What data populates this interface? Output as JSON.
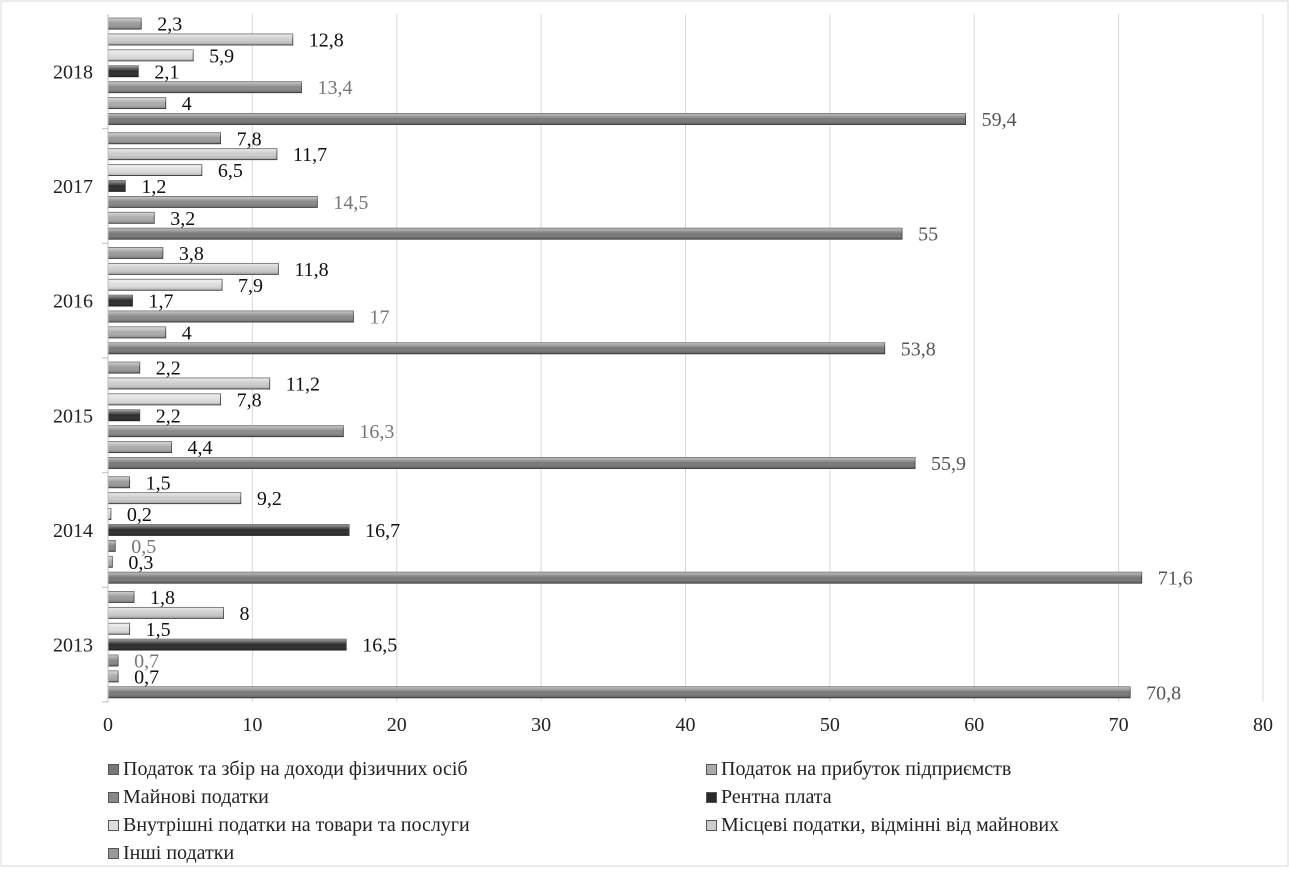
{
  "chart_data": {
    "type": "bar",
    "orientation": "horizontal",
    "categories": [
      "2013",
      "2014",
      "2015",
      "2016",
      "2017",
      "2018"
    ],
    "xlim": [
      0,
      80
    ],
    "x_ticks": [
      "0",
      "10",
      "20",
      "30",
      "40",
      "50",
      "60",
      "70",
      "80"
    ],
    "grid": "vertical",
    "legend_position": "bottom",
    "series": [
      {
        "name": "Податок та збір на доходи фізичних осіб",
        "color": "#777777",
        "values": [
          70.8,
          71.6,
          55.9,
          53.8,
          55,
          59.4
        ],
        "labels": [
          "70,8",
          "71,6",
          "55,9",
          "53,8",
          "55",
          "59,4"
        ],
        "label_color": "#555555"
      },
      {
        "name": "Податок на прибуток підприємств",
        "color": "#aaaaaa",
        "values": [
          0.7,
          0.3,
          4.4,
          4,
          3.2,
          4
        ],
        "labels": [
          "0,7",
          "0,3",
          "4,4",
          "4",
          "3,2",
          "4"
        ],
        "label_color": "#111111"
      },
      {
        "name": "Майнові податки",
        "color": "#888888",
        "values": [
          0.7,
          0.5,
          16.3,
          17,
          14.5,
          13.4
        ],
        "labels": [
          "0,7",
          "0,5",
          "16,3",
          "17",
          "14,5",
          "13,4"
        ],
        "label_color": "#777777"
      },
      {
        "name": "Рентна плата",
        "color": "#2a2a2a",
        "values": [
          16.5,
          16.7,
          2.2,
          1.7,
          1.2,
          2.1
        ],
        "labels": [
          "16,5",
          "16,7",
          "2,2",
          "1,7",
          "1,2",
          "2,1"
        ],
        "label_color": "#111111"
      },
      {
        "name": "Внутрішні податки на товари та послуги",
        "color": "#dddddd",
        "values": [
          1.5,
          0.2,
          7.8,
          7.9,
          6.5,
          5.9
        ],
        "labels": [
          "1,5",
          "0,2",
          "7,8",
          "7,9",
          "6,5",
          "5,9"
        ],
        "label_color": "#111111"
      },
      {
        "name": "Місцеві податки, відмінні від майнових",
        "color": "#cccccc",
        "values": [
          8,
          9.2,
          11.2,
          11.8,
          11.7,
          12.8
        ],
        "labels": [
          "8",
          "9,2",
          "11,2",
          "11,8",
          "11,7",
          "12,8"
        ],
        "label_color": "#111111"
      },
      {
        "name": "Інші податки",
        "color": "#999999",
        "values": [
          1.8,
          1.5,
          2.2,
          3.8,
          7.8,
          2.3
        ],
        "labels": [
          "1,8",
          "1,5",
          "2,2",
          "3,8",
          "7,8",
          "2,3"
        ],
        "label_color": "#111111"
      }
    ],
    "legend_order": [
      0,
      1,
      2,
      3,
      4,
      5,
      6
    ]
  }
}
